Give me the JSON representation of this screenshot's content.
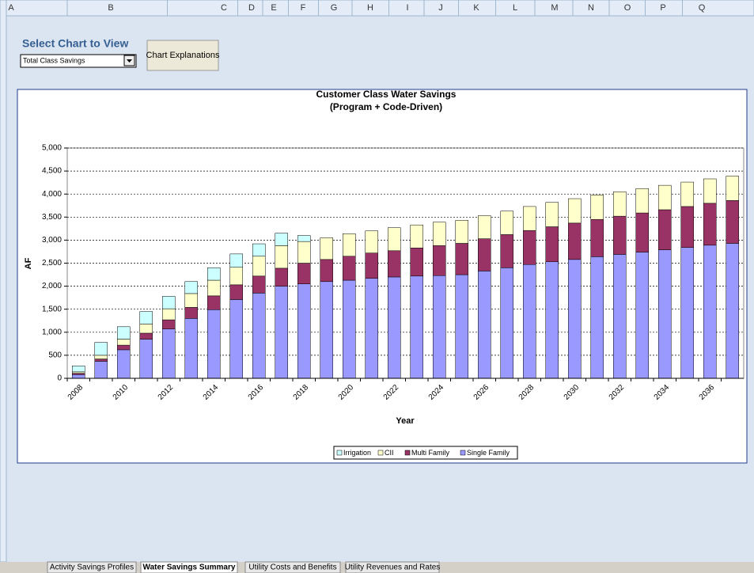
{
  "ui": {
    "columns": [
      "A",
      "B",
      "C",
      "D",
      "E",
      "F",
      "G",
      "H",
      "I",
      "J",
      "K",
      "L",
      "M",
      "N",
      "O",
      "P",
      "Q"
    ],
    "select_label": "Select Chart to View",
    "dropdown": "Total Class Savings",
    "button": "Chart Explanations",
    "tabs": [
      "Activity Savings Profiles",
      "Water Savings Summary",
      "Utility Costs and Benefits",
      "Utility Revenues and Rates"
    ]
  },
  "chart_data": {
    "type": "stacked-bar",
    "title": "Customer Class Water Savings",
    "subtitle": "(Program + Code-Driven)",
    "x_label": "Year",
    "y_label": "AF",
    "categories": [
      "2008",
      null,
      "2010",
      null,
      "2012",
      null,
      "2014",
      null,
      "2016",
      null,
      "2018",
      null,
      "2020",
      null,
      "2022",
      null,
      "2024",
      null,
      "2026",
      null,
      "2028",
      null,
      "2030",
      null,
      "2032",
      null,
      "2034",
      null,
      "2036",
      null
    ],
    "series": [
      {
        "name": "Irrigation",
        "color": "#ccffff",
        "values": [
          130,
          280,
          270,
          270,
          270,
          260,
          270,
          290,
          270,
          270,
          130,
          0,
          0,
          0,
          0,
          0,
          0,
          0,
          0,
          0,
          0,
          0,
          0,
          0,
          0,
          0,
          0,
          0,
          0,
          0
        ]
      },
      {
        "name": "CII",
        "color": "#ffffcc",
        "values": [
          30,
          80,
          130,
          200,
          240,
          300,
          340,
          380,
          430,
          490,
          470,
          470,
          490,
          480,
          500,
          500,
          510,
          500,
          500,
          510,
          520,
          530,
          530,
          530,
          530,
          530,
          530,
          530,
          530,
          530
        ]
      },
      {
        "name": "Multi Family",
        "color": "#993366",
        "values": [
          30,
          50,
          100,
          130,
          200,
          240,
          300,
          320,
          370,
          390,
          450,
          480,
          520,
          550,
          570,
          610,
          650,
          680,
          700,
          720,
          740,
          760,
          790,
          810,
          830,
          850,
          870,
          890,
          910,
          930
        ]
      },
      {
        "name": "Single Family",
        "color": "#9999ff",
        "values": [
          80,
          370,
          620,
          850,
          1070,
          1300,
          1490,
          1710,
          1850,
          2000,
          2050,
          2100,
          2130,
          2170,
          2200,
          2220,
          2230,
          2250,
          2330,
          2400,
          2470,
          2530,
          2580,
          2640,
          2690,
          2740,
          2790,
          2840,
          2890,
          2930
        ]
      }
    ],
    "ylim": [
      0,
      5000
    ],
    "yticks": [
      0,
      500,
      {
        "value": 1000,
        "label": "1,000"
      },
      {
        "value": 1500,
        "label": "1,500"
      },
      {
        "value": 2000,
        "label": "2,000"
      },
      {
        "value": 2500,
        "label": "2,500"
      },
      {
        "value": 3000,
        "label": "3,000"
      },
      {
        "value": 3500,
        "label": "3,500"
      },
      {
        "value": 4000,
        "label": "4,000"
      },
      {
        "value": 4500,
        "label": "4,500"
      },
      {
        "value": 5000,
        "label": "5,000"
      }
    ],
    "grid": true,
    "legend": "bottom"
  }
}
